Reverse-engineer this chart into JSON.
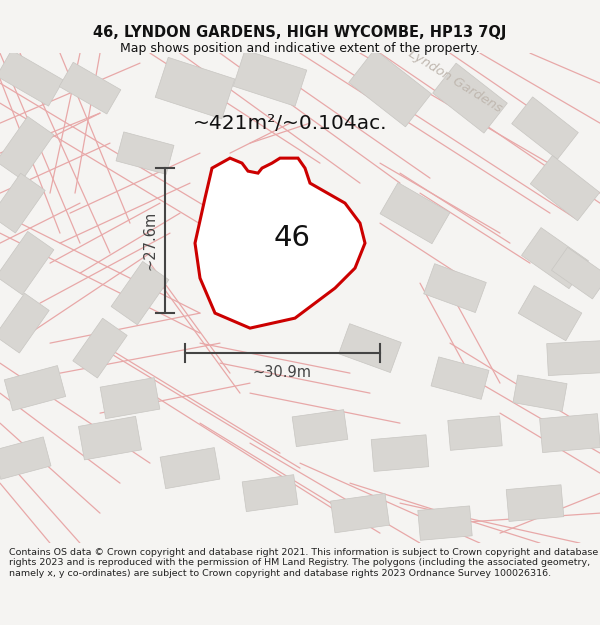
{
  "title_line1": "46, LYNDON GARDENS, HIGH WYCOMBE, HP13 7QJ",
  "title_line2": "Map shows position and indicative extent of the property.",
  "area_text": "~421m²/~0.104ac.",
  "label_46": "46",
  "dim_height": "~27.6m",
  "dim_width": "~30.9m",
  "street_label": "Lyndon Gardens",
  "footer_text": "Contains OS data © Crown copyright and database right 2021. This information is subject to Crown copyright and database rights 2023 and is reproduced with the permission of HM Land Registry. The polygons (including the associated geometry, namely x, y co-ordinates) are subject to Crown copyright and database rights 2023 Ordnance Survey 100026316.",
  "bg_color": "#f5f4f2",
  "map_bg": "#eeece8",
  "map_bg2": "#f5f4f2",
  "building_color": "#d8d6d2",
  "building_border": "#c8c6c2",
  "road_line_color": "#e8a8a8",
  "plot_outline_color": "#cc0000",
  "dim_color": "#444444",
  "title_color": "#111111",
  "street_label_color": "#c0b8b0",
  "footer_color": "#222222"
}
